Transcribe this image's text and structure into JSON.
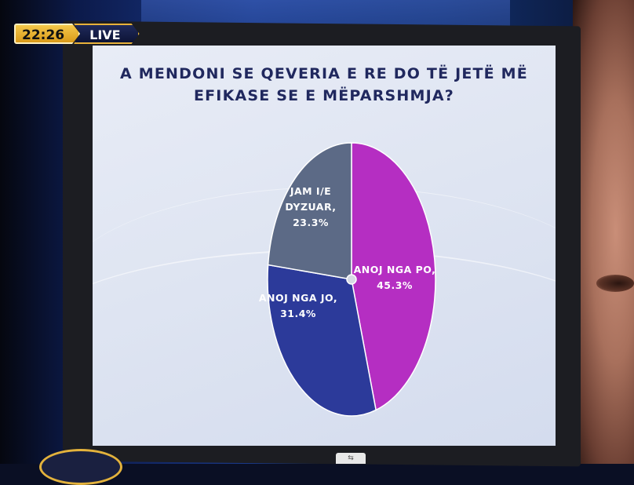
{
  "broadcast": {
    "time": "22:26",
    "live_label": "LIVE"
  },
  "chart_data": {
    "type": "pie",
    "title_lines": [
      "A MENDONI SE QEVERIA E RE DO TË JETË MË",
      "EFIKASE SE E MËPARSHMJA?"
    ],
    "slices": [
      {
        "label_lines": [
          "ANOJ NGA PO,",
          "45.3%"
        ],
        "value": 45.3,
        "color": "#b52ec2",
        "text_color": "#ffffff"
      },
      {
        "label_lines": [
          "ANOJ NGA JO,",
          "31.4%"
        ],
        "value": 31.4,
        "color": "#2c3a9a",
        "text_color": "#ffffff"
      },
      {
        "label_lines": [
          "JAM I/E",
          "DYZUAR,",
          "23.3%"
        ],
        "value": 23.3,
        "color": "#5c6a86",
        "text_color": "#ffffff"
      }
    ]
  }
}
